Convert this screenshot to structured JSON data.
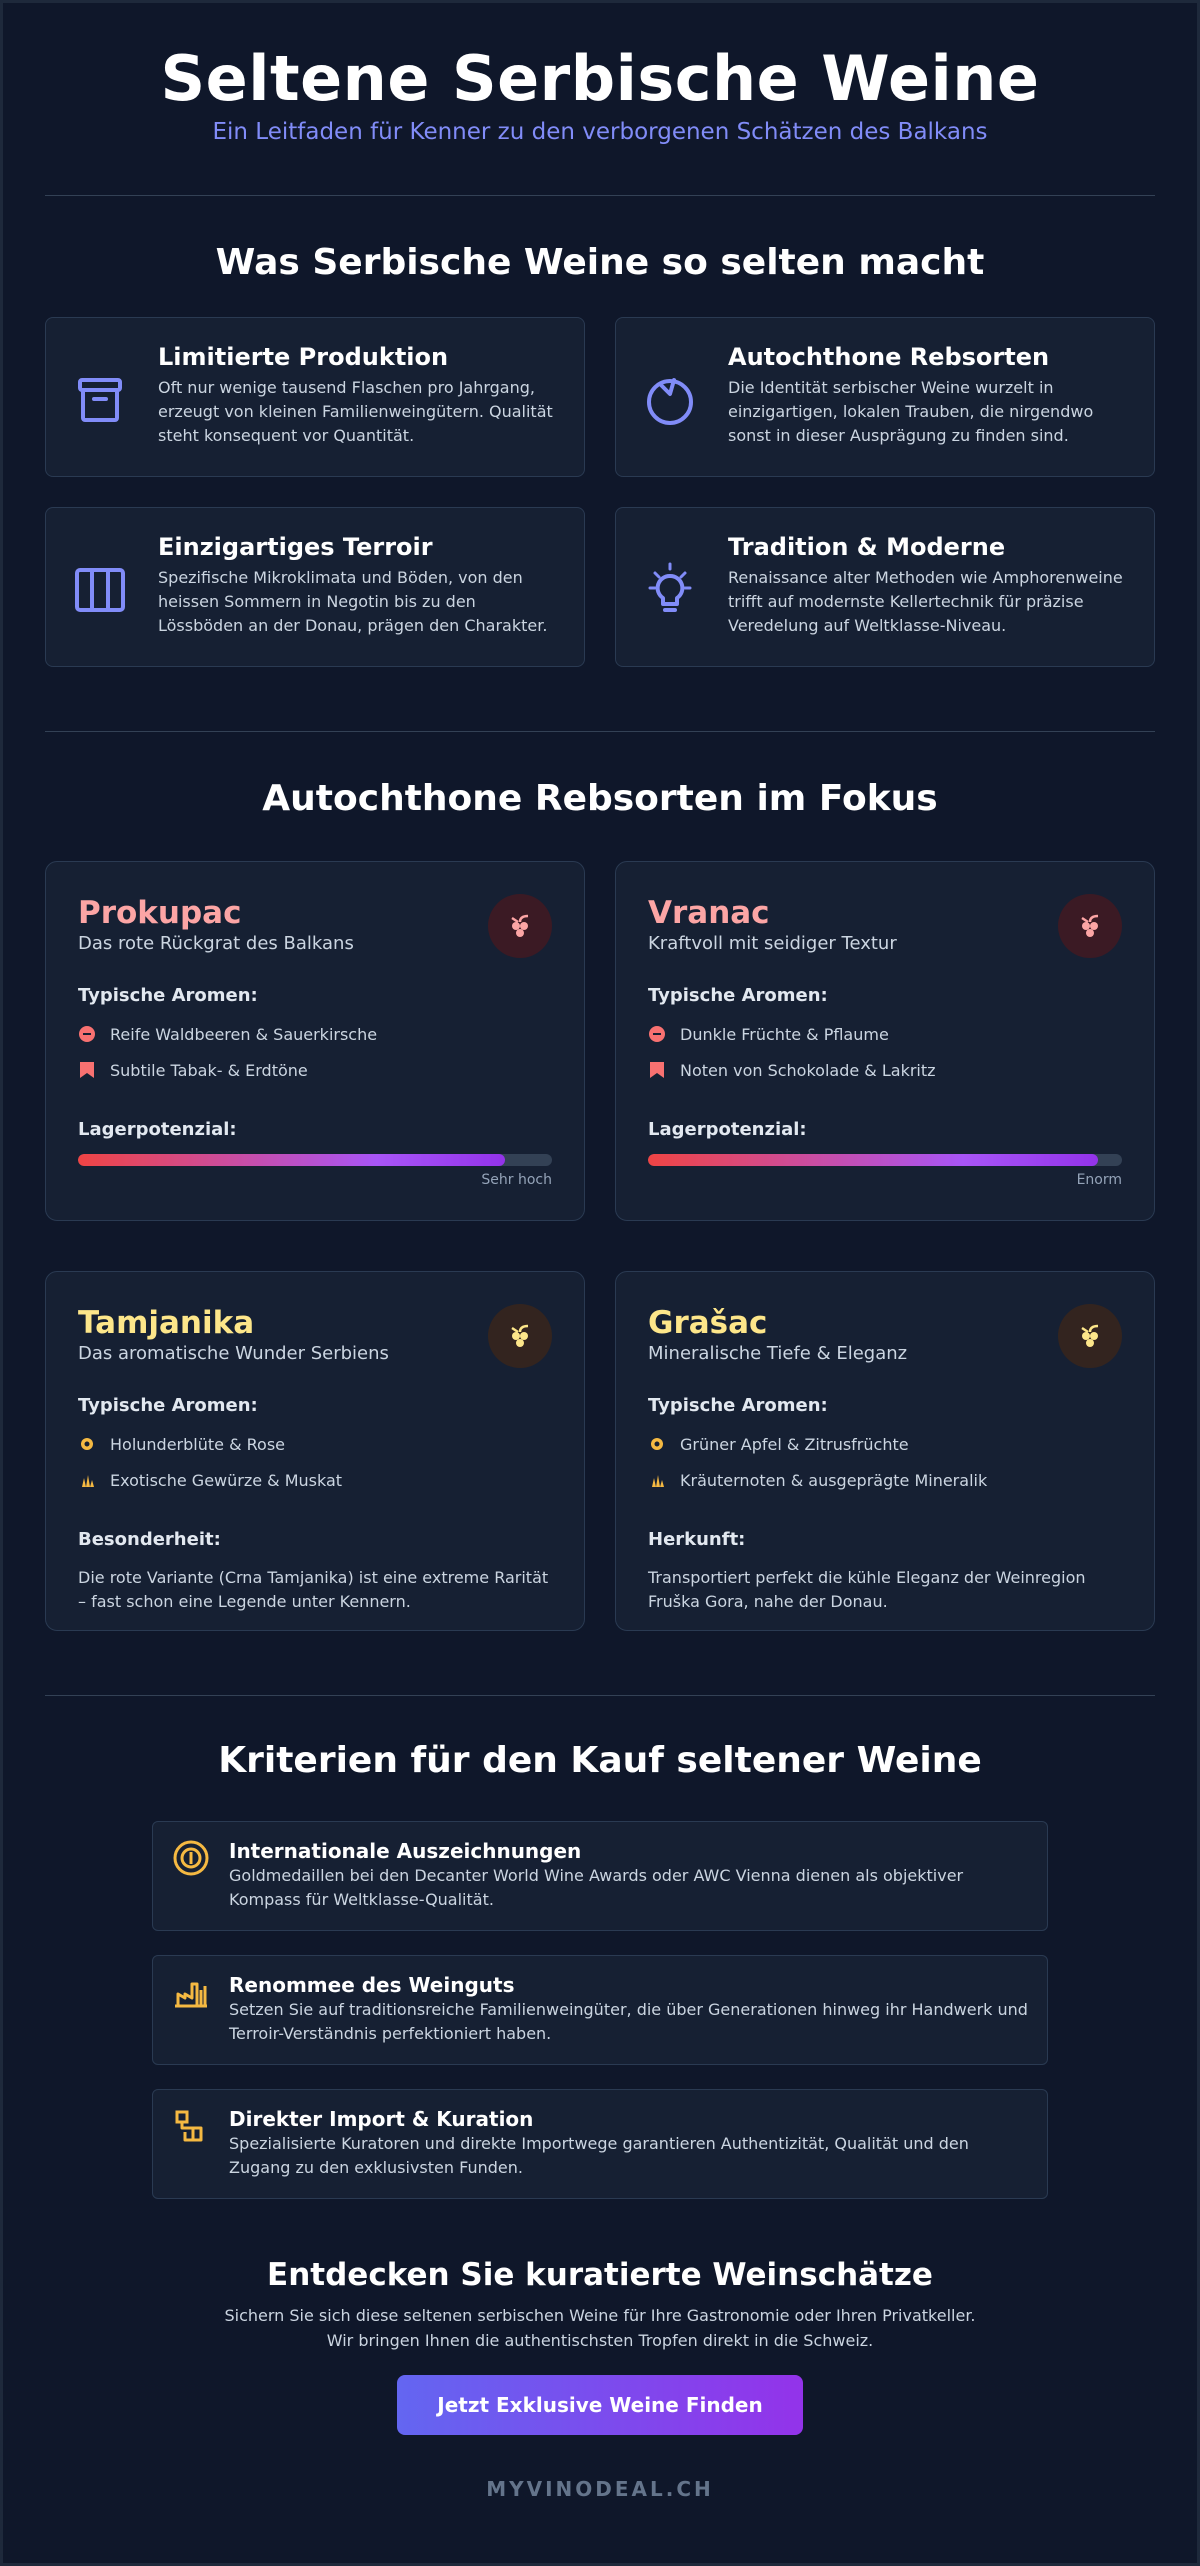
{
  "hero": {
    "title": "Seltene Serbische Weine",
    "subtitle": "Ein Leitfaden für Kenner zu den verborgenen Schätzen des Balkans"
  },
  "why": {
    "title": "Was Serbische Weine so selten macht",
    "cards": [
      {
        "icon": "archive-box-icon",
        "title": "Limitierte Produktion",
        "text": "Oft nur wenige tausend Flaschen pro Jahrgang, erzeugt von kleinen Familienweingütern. Qualität steht konsequent vor Quantität."
      },
      {
        "icon": "grape-circle-icon",
        "title": "Autochthone Rebsorten",
        "text": "Die Identität serbischer Weine wurzelt in einzigartigen, lokalen Trauben, die nirgendwo sonst in dieser Ausprägung zu finden sind."
      },
      {
        "icon": "columns-icon",
        "title": "Einzigartiges Terroir",
        "text": "Spezifische Mikroklimata und Böden, von den heissen Sommern in Negotin bis zu den Lössböden an der Donau, prägen den Charakter."
      },
      {
        "icon": "lightbulb-icon",
        "title": "Tradition & Moderne",
        "text": "Renaissance alter Methoden wie Amphorenweine trifft auf modernste Kellertechnik für präzise Veredelung auf Weltklasse-Niveau."
      }
    ]
  },
  "grapes": {
    "title": "Autochthone Rebsorten im Fokus",
    "aroma_heading": "Typische Aromen:",
    "storage_heading": "Lagerpotenzial:",
    "items": [
      {
        "name": "Prokupac",
        "tagline": "Das rote Rückgrat des Balkans",
        "color": "#fca5a5",
        "badge_bg": "#3b1a24",
        "aromas": [
          "Reife Waldbeeren & Sauerkirsche",
          "Subtile Tabak- & Erdtöne"
        ],
        "aroma_icons": [
          "minus-circle-icon",
          "bookmark-icon"
        ],
        "storage_level": 0.9,
        "storage_label": "Sehr hoch"
      },
      {
        "name": "Vranac",
        "tagline": "Kraftvoll mit seidiger Textur",
        "color": "#fca5a5",
        "badge_bg": "#3b1a24",
        "aromas": [
          "Dunkle Früchte & Pflaume",
          "Noten von Schokolade & Lakritz"
        ],
        "aroma_icons": [
          "minus-circle-icon",
          "bookmark-icon"
        ],
        "storage_level": 0.95,
        "storage_label": "Enorm"
      },
      {
        "name": "Tamjanika",
        "tagline": "Das aromatische Wunder Serbiens",
        "color": "#fde68a",
        "badge_bg": "#33241f",
        "aromas": [
          "Holunderblüte & Rose",
          "Exotische Gewürze & Muskat"
        ],
        "aroma_icons": [
          "flower-icon",
          "spice-icon"
        ],
        "extra_heading": "Besonderheit:",
        "extra_text": "Die rote Variante (Crna Tamjanika) ist eine extreme Rarität – fast schon eine Legende unter Kennern."
      },
      {
        "name": "Grašac",
        "tagline": "Mineralische Tiefe & Eleganz",
        "color": "#fde68a",
        "badge_bg": "#33241f",
        "aromas": [
          "Grüner Apfel & Zitrusfrüchte",
          "Kräuternoten & ausgeprägte Mineralik"
        ],
        "aroma_icons": [
          "flower-icon",
          "spice-icon"
        ],
        "extra_heading": "Herkunft:",
        "extra_text": "Transportiert perfekt die kühle Eleganz der Weinregion Fruška Gora, nahe der Donau."
      }
    ]
  },
  "criteria": {
    "title": "Kriterien für den Kauf seltener Weine",
    "items": [
      {
        "icon": "medal-icon",
        "title": "Internationale Auszeichnungen",
        "text": "Goldmedaillen bei den Decanter World Wine Awards oder AWC Vienna dienen als objektiver Kompass für Weltklasse-Qualität."
      },
      {
        "icon": "winery-icon",
        "title": "Renommee des Weinguts",
        "text": "Setzen Sie auf traditionsreiche Familienweingüter, die über Generationen hinweg ihr Handwerk und Terroir-Verständnis perfektioniert haben."
      },
      {
        "icon": "import-icon",
        "title": "Direkter Import & Kuration",
        "text": "Spezialisierte Kuratoren und direkte Importwege garantieren Authentizität, Qualität und den Zugang zu den exklusivsten Funden."
      }
    ]
  },
  "cta": {
    "title": "Entdecken Sie kuratierte Weinschätze",
    "line1": "Sichern Sie sich diese seltenen serbischen Weine für Ihre Gastronomie oder Ihren Privatkeller.",
    "line2": "Wir bringen Ihnen die authentischsten Tropfen direkt in die Schweiz.",
    "button": "Jetzt Exklusive Weine Finden"
  },
  "footer": {
    "brand": "MYVINODEAL.CH"
  },
  "colors": {
    "accent_indigo": "#818cf8",
    "accent_gold": "#f5b942",
    "rose": "#fca5a5",
    "gold_light": "#fde68a"
  }
}
